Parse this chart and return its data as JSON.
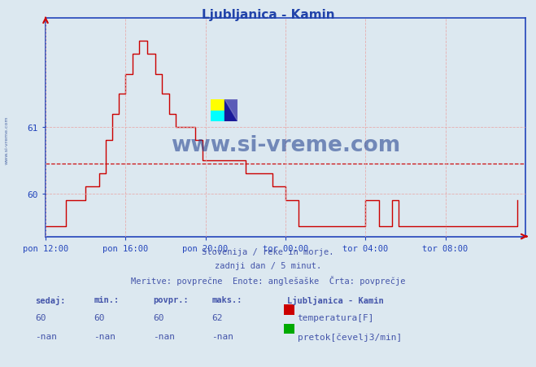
{
  "title": "Ljubljanica - Kamin",
  "title_color": "#2244aa",
  "bg_color": "#dce8f0",
  "plot_bg_color": "#dce8f0",
  "grid_color": "#e8a8a8",
  "axis_color": "#2244bb",
  "line_color": "#cc0000",
  "avg_line_color": "#cc0000",
  "avg_value": 60.45,
  "ylim": [
    59.35,
    62.65
  ],
  "yticks": [
    60,
    61
  ],
  "ytick_labels": [
    "60",
    "61"
  ],
  "xtick_labels": [
    "pon 12:00",
    "pon 16:00",
    "pon 20:00",
    "tor 00:00",
    "tor 04:00",
    "tor 08:00"
  ],
  "xtick_positions": [
    0,
    48,
    96,
    144,
    192,
    240
  ],
  "total_points": 288,
  "subtitle1": "Slovenija / reke in morje.",
  "subtitle2": "zadnji dan / 5 minut.",
  "subtitle3": "Meritve: povprečne  Enote: anglešaške  Črta: povprečje",
  "footer_color": "#4455aa",
  "watermark": "www.si-vreme.com",
  "watermark_color": "#1a3a8a",
  "watermark_left": "www.si-vreme.com",
  "legend_title": "Ljubljanica - Kamin",
  "legend_color1": "#cc0000",
  "legend_label1": "temperatura[F]",
  "legend_color2": "#00aa00",
  "legend_label2": "pretok[čevelj3/min]",
  "stat_headers": [
    "sedaj:",
    "min.:",
    "povpr.:",
    "maks.:"
  ],
  "stat_values1": [
    "60",
    "60",
    "60",
    "62"
  ],
  "stat_values2": [
    "-nan",
    "-nan",
    "-nan",
    "-nan"
  ],
  "temperature_data": [
    59.5,
    59.5,
    59.5,
    59.5,
    59.5,
    59.5,
    59.5,
    59.5,
    59.5,
    59.5,
    59.5,
    59.5,
    59.9,
    59.9,
    59.9,
    59.9,
    59.9,
    59.9,
    59.9,
    59.9,
    59.9,
    59.9,
    59.9,
    59.9,
    60.1,
    60.1,
    60.1,
    60.1,
    60.1,
    60.1,
    60.1,
    60.1,
    60.3,
    60.3,
    60.3,
    60.3,
    60.8,
    60.8,
    60.8,
    60.8,
    61.2,
    61.2,
    61.2,
    61.2,
    61.5,
    61.5,
    61.5,
    61.5,
    61.8,
    61.8,
    61.8,
    61.8,
    62.1,
    62.1,
    62.1,
    62.1,
    62.3,
    62.3,
    62.3,
    62.3,
    62.3,
    62.1,
    62.1,
    62.1,
    62.1,
    62.1,
    61.8,
    61.8,
    61.8,
    61.8,
    61.5,
    61.5,
    61.5,
    61.5,
    61.2,
    61.2,
    61.2,
    61.2,
    61.0,
    61.0,
    61.0,
    61.0,
    61.0,
    61.0,
    61.0,
    61.0,
    61.0,
    61.0,
    61.0,
    61.0,
    60.8,
    60.8,
    60.8,
    60.8,
    60.5,
    60.5,
    60.5,
    60.5,
    60.5,
    60.5,
    60.5,
    60.5,
    60.5,
    60.5,
    60.5,
    60.5,
    60.5,
    60.5,
    60.5,
    60.5,
    60.5,
    60.5,
    60.5,
    60.5,
    60.5,
    60.5,
    60.5,
    60.5,
    60.5,
    60.5,
    60.3,
    60.3,
    60.3,
    60.3,
    60.3,
    60.3,
    60.3,
    60.3,
    60.3,
    60.3,
    60.3,
    60.3,
    60.3,
    60.3,
    60.3,
    60.3,
    60.1,
    60.1,
    60.1,
    60.1,
    60.1,
    60.1,
    60.1,
    60.1,
    59.9,
    59.9,
    59.9,
    59.9,
    59.9,
    59.9,
    59.9,
    59.9,
    59.5,
    59.5,
    59.5,
    59.5,
    59.5,
    59.5,
    59.5,
    59.5,
    59.5,
    59.5,
    59.5,
    59.5,
    59.5,
    59.5,
    59.5,
    59.5,
    59.5,
    59.5,
    59.5,
    59.5,
    59.5,
    59.5,
    59.5,
    59.5,
    59.5,
    59.5,
    59.5,
    59.5,
    59.5,
    59.5,
    59.5,
    59.5,
    59.5,
    59.5,
    59.5,
    59.5,
    59.5,
    59.5,
    59.5,
    59.5,
    59.9,
    59.9,
    59.9,
    59.9,
    59.9,
    59.9,
    59.9,
    59.9,
    59.5,
    59.5,
    59.5,
    59.5,
    59.5,
    59.5,
    59.5,
    59.5,
    59.9,
    59.9,
    59.9,
    59.9,
    59.5,
    59.5,
    59.5,
    59.5,
    59.5,
    59.5,
    59.5,
    59.5,
    59.5,
    59.5,
    59.5,
    59.5,
    59.5,
    59.5,
    59.5,
    59.5,
    59.5,
    59.5,
    59.5,
    59.5,
    59.5,
    59.5,
    59.5,
    59.5,
    59.5,
    59.5,
    59.5,
    59.5,
    59.5,
    59.5,
    59.5,
    59.5,
    59.5,
    59.5,
    59.5,
    59.5,
    59.5,
    59.5,
    59.5,
    59.5,
    59.5,
    59.5,
    59.5,
    59.5,
    59.5,
    59.5,
    59.5,
    59.5,
    59.5,
    59.5,
    59.5,
    59.5,
    59.5,
    59.5,
    59.5,
    59.5,
    59.5,
    59.5,
    59.5,
    59.5,
    59.5,
    59.5,
    59.5,
    59.5,
    59.5,
    59.5,
    59.5,
    59.5,
    59.5,
    59.5,
    59.5,
    59.9
  ]
}
